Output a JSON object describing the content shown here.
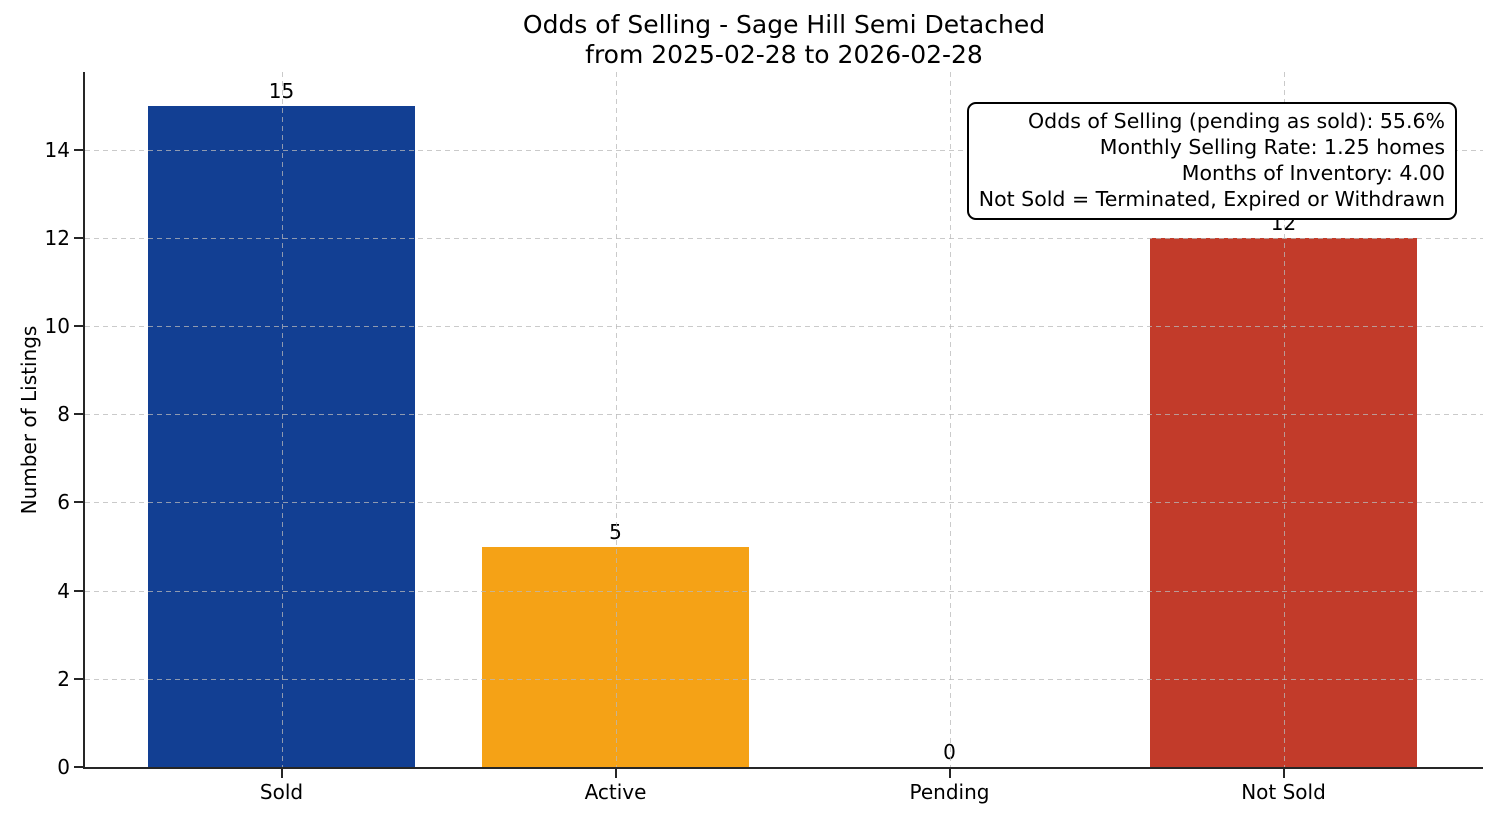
{
  "chart_data": {
    "type": "bar",
    "title": "Odds of Selling - Sage Hill Semi Detached",
    "subtitle": "from 2025-02-28 to 2026-02-28",
    "categories": [
      "Sold",
      "Active",
      "Pending",
      "Not Sold"
    ],
    "values": [
      15,
      5,
      0,
      12
    ],
    "bar_colors": [
      "#123f93",
      "#f5a216",
      null,
      "#c23b2a"
    ],
    "xlabel": "",
    "ylabel": "Number of Listings",
    "ylim": [
      0,
      15.76
    ],
    "yticks": [
      0,
      2,
      4,
      6,
      8,
      10,
      12,
      14
    ],
    "grid": "dashed, horizontal and vertical",
    "legend": "none",
    "annotation_box": {
      "position": "top-right",
      "lines": [
        "Odds of Selling (pending as sold): 55.6%",
        "Monthly Selling Rate: 1.25 homes",
        "Months of Inventory: 4.00",
        "Not Sold = Terminated, Expired or Withdrawn"
      ]
    },
    "colors": {
      "sold_bar": "#123f93",
      "active_bar": "#f5a216",
      "not_sold_bar": "#c23b2a",
      "axis": "#262626",
      "grid": "#b9b9b9",
      "text": "#000000",
      "background": "#ffffff"
    }
  }
}
